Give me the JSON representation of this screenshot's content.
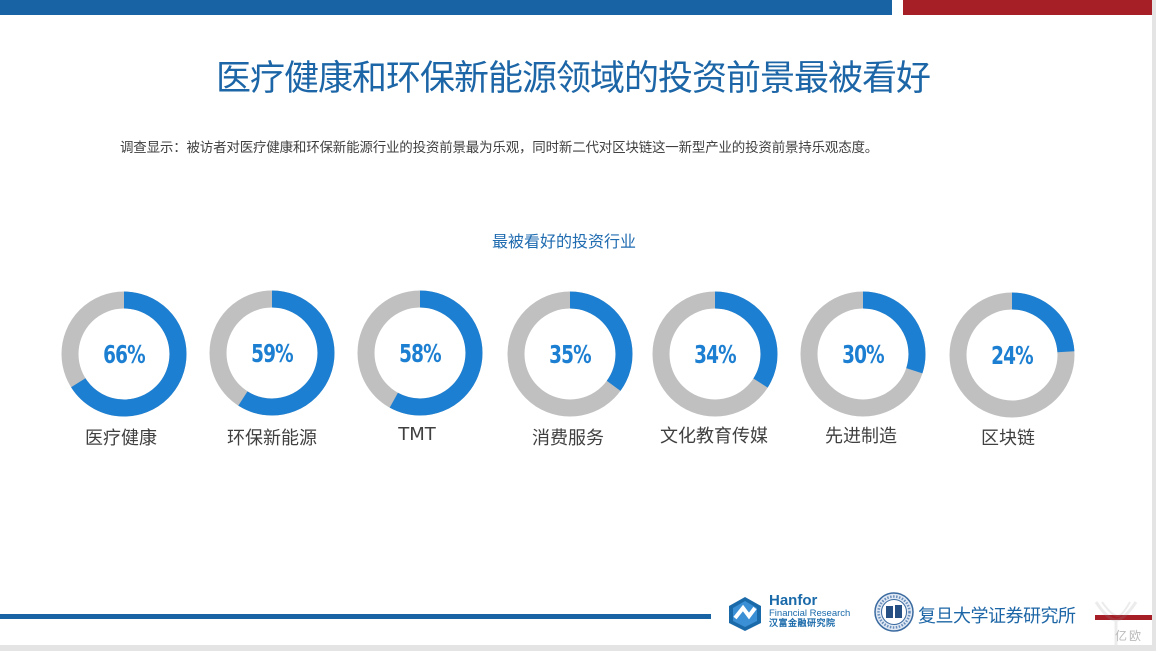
{
  "header": {
    "title": "医疗健康和环保新能源领域的投资前景最被看好",
    "subtitle": "调查显示：被访者对医疗健康和环保新能源行业的投资前景最为乐观，同时新二代对区块链这一新型产业的投资前景持乐观态度。"
  },
  "colors": {
    "brand_blue": "#1763a3",
    "brand_red": "#a61e26",
    "ring_fill": "#1d7fd1",
    "ring_track": "#c0c0c0",
    "title_blue": "#1c65a6"
  },
  "chart_data": {
    "type": "donut",
    "title": "最被看好的投资行业",
    "categories": [
      "医疗健康",
      "环保新能源",
      "TMT",
      "消费服务",
      "文化教育传媒",
      "先进制造",
      "区块链"
    ],
    "values": [
      66,
      59,
      58,
      35,
      34,
      30,
      24
    ],
    "value_labels": [
      "66%",
      "59%",
      "58%",
      "35%",
      "34%",
      "30%",
      "24%"
    ],
    "unit": "%",
    "max": 100,
    "xlabel": "",
    "ylabel": "",
    "legend": "none"
  },
  "rings": [
    {
      "label": "医疗健康",
      "pct_label": "66%",
      "value": 66
    },
    {
      "label": "环保新能源",
      "pct_label": "59%",
      "value": 59
    },
    {
      "label": "TMT",
      "pct_label": "58%",
      "value": 58
    },
    {
      "label": "消费服务",
      "pct_label": "35%",
      "value": 35
    },
    {
      "label": "文化教育传媒",
      "pct_label": "34%",
      "value": 34
    },
    {
      "label": "先进制造",
      "pct_label": "30%",
      "value": 30
    },
    {
      "label": "区块链",
      "pct_label": "24%",
      "value": 24
    }
  ],
  "footer": {
    "hanfor_name": "Hanfor",
    "hanfor_sub": "Financial Research",
    "hanfor_cn": "汉富金融研究院",
    "fudan_name": "复旦大学证券研究所",
    "watermark": "亿欧"
  }
}
